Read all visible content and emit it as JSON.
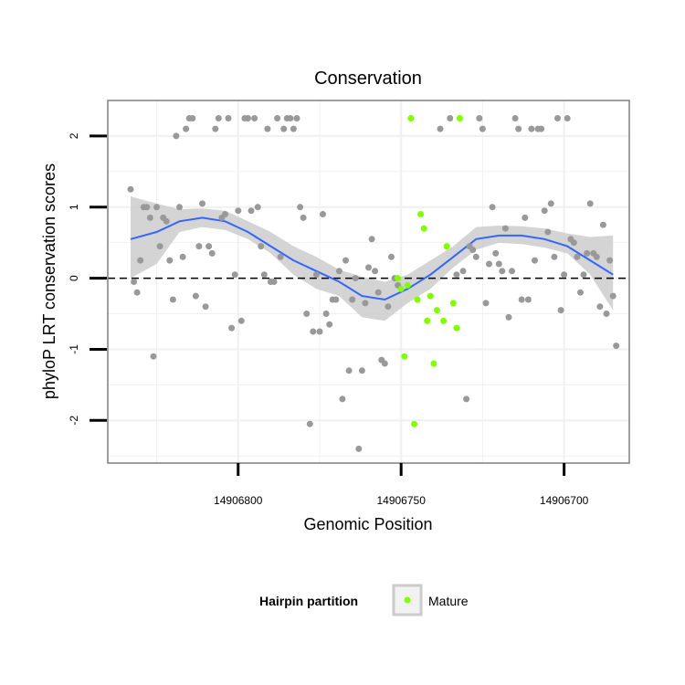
{
  "chart_data": {
    "type": "scatter",
    "title": "Conservation",
    "xlabel": "Genomic Position",
    "ylabel": "phyloP LRT conservation scores",
    "x_reversed": true,
    "xlim": [
      14906840,
      14906680
    ],
    "ylim": [
      -2.6,
      2.5
    ],
    "x_ticks": [
      14906800,
      14906750,
      14906700
    ],
    "x_tick_labels": [
      "14906800",
      "14906750",
      "14906700"
    ],
    "y_ticks": [
      -2,
      -1,
      0,
      1,
      2
    ],
    "y_tick_labels": [
      "-2",
      "-1",
      "0",
      "1",
      "2"
    ],
    "grid": true,
    "reference_line": {
      "y": 0,
      "style": "dashed"
    },
    "legend": {
      "title": "Hairpin partition",
      "position": "bottom",
      "entries": [
        "Mature"
      ]
    },
    "colors": {
      "other": "#999999",
      "mature": "#7fff00",
      "smooth": "#3366ff",
      "ribbon": "#cccccc",
      "panel_border": "#7f7f7f",
      "grid": "#f0f0f0"
    },
    "series": [
      {
        "name": "",
        "color": "#999999",
        "points": [
          [
            14906833,
            1.25
          ],
          [
            14906832,
            -0.05
          ],
          [
            14906831,
            -0.2
          ],
          [
            14906830,
            0.25
          ],
          [
            14906829,
            1.0
          ],
          [
            14906828,
            1.0
          ],
          [
            14906827,
            0.85
          ],
          [
            14906826,
            -1.1
          ],
          [
            14906825,
            1.0
          ],
          [
            14906824,
            0.45
          ],
          [
            14906823,
            0.85
          ],
          [
            14906822,
            0.8
          ],
          [
            14906821,
            0.25
          ],
          [
            14906820,
            -0.3
          ],
          [
            14906819,
            2.0
          ],
          [
            14906818,
            1.0
          ],
          [
            14906817,
            0.3
          ],
          [
            14906816,
            2.1
          ],
          [
            14906815,
            2.25
          ],
          [
            14906814,
            2.25
          ],
          [
            14906813,
            -0.25
          ],
          [
            14906812,
            0.45
          ],
          [
            14906811,
            1.05
          ],
          [
            14906810,
            -0.4
          ],
          [
            14906809,
            0.45
          ],
          [
            14906808,
            0.35
          ],
          [
            14906807,
            2.1
          ],
          [
            14906806,
            2.25
          ],
          [
            14906805,
            0.85
          ],
          [
            14906804,
            0.9
          ],
          [
            14906803,
            2.25
          ],
          [
            14906802,
            -0.7
          ],
          [
            14906801,
            0.05
          ],
          [
            14906800,
            0.95
          ],
          [
            14906799,
            -0.6
          ],
          [
            14906798,
            2.25
          ],
          [
            14906797,
            2.25
          ],
          [
            14906796,
            0.95
          ],
          [
            14906795,
            2.25
          ],
          [
            14906794,
            1.0
          ],
          [
            14906793,
            0.45
          ],
          [
            14906792,
            0.05
          ],
          [
            14906791,
            2.1
          ],
          [
            14906790,
            -0.05
          ],
          [
            14906789,
            -0.05
          ],
          [
            14906788,
            2.25
          ],
          [
            14906787,
            0.3
          ],
          [
            14906786,
            2.1
          ],
          [
            14906785,
            2.25
          ],
          [
            14906784,
            2.25
          ],
          [
            14906783,
            2.1
          ],
          [
            14906782,
            2.25
          ],
          [
            14906781,
            1.0
          ],
          [
            14906780,
            0.85
          ],
          [
            14906779,
            -0.5
          ],
          [
            14906778,
            -2.05
          ],
          [
            14906777,
            -0.75
          ],
          [
            14906776,
            0.05
          ],
          [
            14906775,
            -0.75
          ],
          [
            14906774,
            0.9
          ],
          [
            14906773,
            -0.5
          ],
          [
            14906772,
            -0.65
          ],
          [
            14906771,
            -0.3
          ],
          [
            14906770,
            -0.3
          ],
          [
            14906769,
            0.1
          ],
          [
            14906768,
            -1.7
          ],
          [
            14906767,
            0.25
          ],
          [
            14906766,
            -1.3
          ],
          [
            14906765,
            -0.3
          ],
          [
            14906764,
            0.0
          ],
          [
            14906763,
            -2.4
          ],
          [
            14906762,
            -1.3
          ],
          [
            14906761,
            -0.35
          ],
          [
            14906760,
            0.15
          ],
          [
            14906759,
            0.55
          ],
          [
            14906758,
            0.1
          ],
          [
            14906757,
            -0.2
          ],
          [
            14906756,
            -1.15
          ],
          [
            14906755,
            -1.2
          ],
          [
            14906754,
            -0.4
          ],
          [
            14906753,
            0.3
          ],
          [
            14906752,
            0.0
          ],
          [
            14906751,
            -0.1
          ],
          [
            14906738,
            2.1
          ],
          [
            14906735,
            2.25
          ],
          [
            14906733,
            0.05
          ],
          [
            14906731,
            0.1
          ],
          [
            14906730,
            -1.7
          ],
          [
            14906729,
            0.45
          ],
          [
            14906728,
            0.4
          ],
          [
            14906727,
            0.3
          ],
          [
            14906726,
            2.25
          ],
          [
            14906725,
            2.1
          ],
          [
            14906724,
            -0.35
          ],
          [
            14906723,
            0.2
          ],
          [
            14906722,
            1.0
          ],
          [
            14906721,
            0.35
          ],
          [
            14906720,
            0.2
          ],
          [
            14906719,
            0.1
          ],
          [
            14906718,
            0.7
          ],
          [
            14906717,
            -0.55
          ],
          [
            14906716,
            0.1
          ],
          [
            14906715,
            2.25
          ],
          [
            14906714,
            2.1
          ],
          [
            14906713,
            -0.3
          ],
          [
            14906712,
            0.85
          ],
          [
            14906711,
            -0.3
          ],
          [
            14906710,
            2.1
          ],
          [
            14906709,
            0.25
          ],
          [
            14906708,
            2.1
          ],
          [
            14906707,
            2.1
          ],
          [
            14906706,
            0.95
          ],
          [
            14906705,
            0.65
          ],
          [
            14906704,
            1.05
          ],
          [
            14906703,
            0.3
          ],
          [
            14906702,
            2.25
          ],
          [
            14906701,
            -0.45
          ],
          [
            14906700,
            0.05
          ],
          [
            14906699,
            2.25
          ],
          [
            14906698,
            0.55
          ],
          [
            14906697,
            0.5
          ],
          [
            14906696,
            0.3
          ],
          [
            14906695,
            -0.2
          ],
          [
            14906694,
            0.05
          ],
          [
            14906693,
            0.35
          ],
          [
            14906692,
            1.05
          ],
          [
            14906691,
            0.35
          ],
          [
            14906690,
            0.3
          ],
          [
            14906689,
            -0.4
          ],
          [
            14906688,
            0.75
          ],
          [
            14906687,
            -0.5
          ],
          [
            14906686,
            0.25
          ],
          [
            14906685,
            -0.25
          ],
          [
            14906684,
            -0.95
          ]
        ]
      },
      {
        "name": "Mature",
        "color": "#7fff00",
        "points": [
          [
            14906751,
            0.0
          ],
          [
            14906750,
            -0.15
          ],
          [
            14906749,
            -1.1
          ],
          [
            14906748,
            -0.1
          ],
          [
            14906747,
            2.25
          ],
          [
            14906746,
            -2.05
          ],
          [
            14906745,
            -0.3
          ],
          [
            14906744,
            0.9
          ],
          [
            14906743,
            0.7
          ],
          [
            14906742,
            -0.6
          ],
          [
            14906741,
            -0.25
          ],
          [
            14906740,
            -1.2
          ],
          [
            14906739,
            -0.45
          ],
          [
            14906737,
            -0.6
          ],
          [
            14906736,
            0.45
          ],
          [
            14906734,
            -0.35
          ],
          [
            14906733,
            -0.7
          ],
          [
            14906732,
            2.25
          ]
        ]
      }
    ],
    "smooth": {
      "x": [
        14906833,
        14906825,
        14906818,
        14906811,
        14906804,
        14906797,
        14906790,
        14906783,
        14906776,
        14906769,
        14906762,
        14906755,
        14906748,
        14906741,
        14906734,
        14906727,
        14906720,
        14906713,
        14906706,
        14906699,
        14906692,
        14906685
      ],
      "y": [
        0.55,
        0.65,
        0.8,
        0.85,
        0.8,
        0.65,
        0.45,
        0.25,
        0.1,
        -0.05,
        -0.25,
        -0.3,
        -0.15,
        0.05,
        0.3,
        0.55,
        0.6,
        0.6,
        0.55,
        0.45,
        0.25,
        0.05
      ],
      "lower": [
        0.0,
        0.2,
        0.65,
        0.72,
        0.68,
        0.55,
        0.35,
        0.05,
        -0.15,
        -0.25,
        -0.55,
        -0.6,
        -0.35,
        -0.15,
        0.15,
        0.4,
        0.5,
        0.48,
        0.43,
        0.35,
        0.05,
        -0.45
      ],
      "upper": [
        1.15,
        1.05,
        0.97,
        0.98,
        0.95,
        0.8,
        0.65,
        0.45,
        0.3,
        0.12,
        0.02,
        -0.05,
        0.05,
        0.25,
        0.45,
        0.72,
        0.74,
        0.73,
        0.7,
        0.63,
        0.58,
        0.6
      ]
    }
  }
}
